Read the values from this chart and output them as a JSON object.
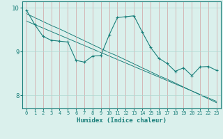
{
  "line1_x": [
    0,
    1,
    2,
    3,
    4,
    5,
    6,
    7,
    8,
    9,
    10,
    11,
    12,
    13,
    14,
    15,
    16,
    17,
    18,
    19,
    20,
    21,
    22,
    23
  ],
  "line1_y": [
    9.95,
    9.62,
    9.35,
    9.26,
    9.24,
    9.22,
    8.8,
    8.76,
    8.9,
    8.91,
    9.38,
    9.78,
    9.8,
    9.82,
    9.45,
    9.1,
    8.85,
    8.73,
    8.55,
    8.63,
    8.45,
    8.65,
    8.66,
    8.57
  ],
  "line2_x": [
    0,
    1,
    2,
    3,
    4,
    5,
    6,
    7,
    8,
    9,
    10,
    11,
    12,
    13,
    14,
    15,
    16,
    17,
    18,
    19,
    20,
    21,
    22,
    23
  ],
  "line2_y": [
    9.87,
    9.78,
    9.69,
    9.6,
    9.52,
    9.43,
    9.34,
    9.25,
    9.16,
    9.07,
    8.98,
    8.9,
    8.81,
    8.72,
    8.63,
    8.54,
    8.45,
    8.37,
    8.28,
    8.19,
    8.1,
    8.01,
    7.92,
    7.83
  ],
  "line3_x": [
    0,
    1,
    2,
    3,
    4,
    5,
    6,
    7,
    8,
    9,
    10,
    11,
    12,
    13,
    14,
    15,
    16,
    17,
    18,
    19,
    20,
    21,
    22,
    23
  ],
  "line3_y": [
    9.7,
    9.62,
    9.54,
    9.46,
    9.38,
    9.3,
    9.22,
    9.14,
    9.06,
    8.98,
    8.9,
    8.82,
    8.74,
    8.66,
    8.58,
    8.5,
    8.42,
    8.34,
    8.26,
    8.18,
    8.1,
    8.02,
    7.94,
    7.86
  ],
  "line_color": "#1a7f7a",
  "bg_color": "#daf0ec",
  "grid_color": "#aed8d2",
  "xlabel": "Humidex (Indice chaleur)",
  "ylim": [
    7.7,
    10.15
  ],
  "xlim": [
    -0.5,
    23.5
  ],
  "yticks": [
    8,
    9,
    10
  ],
  "xticks": [
    0,
    1,
    2,
    3,
    4,
    5,
    6,
    7,
    8,
    9,
    10,
    11,
    12,
    13,
    14,
    15,
    16,
    17,
    18,
    19,
    20,
    21,
    22,
    23
  ]
}
